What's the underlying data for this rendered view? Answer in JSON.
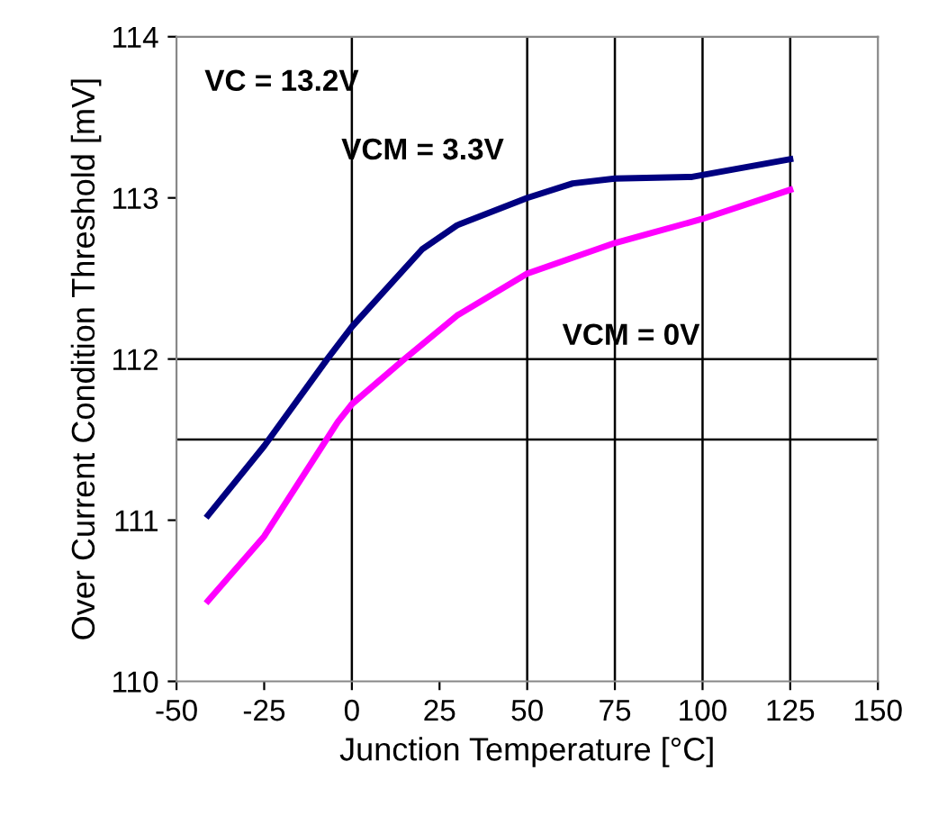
{
  "chart_data": {
    "type": "line",
    "xlabel": "Junction Temperature [°C]",
    "ylabel": "Over Current Condition Threshold [mV]",
    "xlim": [
      -50,
      150
    ],
    "xticks": [
      -50,
      -25,
      0,
      25,
      50,
      75,
      100,
      125,
      150
    ],
    "ylim": [
      110,
      114
    ],
    "yticks": [
      110,
      111,
      112,
      113,
      114
    ],
    "grid": false,
    "series": [
      {
        "name": "VCM = 3.3V",
        "color": "#000080",
        "x": [
          -41,
          -25,
          -7,
          0,
          20,
          30,
          50,
          63,
          75,
          97,
          125
        ],
        "values": [
          111.03,
          111.46,
          112.0,
          112.2,
          112.68,
          112.83,
          113.0,
          113.09,
          113.12,
          113.13,
          113.24
        ]
      },
      {
        "name": "VCM = 0V",
        "color": "#ff00ff",
        "x": [
          -41,
          -25,
          -4,
          0,
          15,
          30,
          50,
          75,
          100,
          125
        ],
        "values": [
          110.5,
          110.9,
          111.61,
          111.72,
          112.0,
          112.27,
          112.53,
          112.72,
          112.87,
          113.05
        ]
      }
    ],
    "annotations": [
      "VC = 13.2V"
    ],
    "ref_lines": [
      {
        "axis": "x",
        "value": 0,
        "color": "#000000"
      },
      {
        "axis": "x",
        "value": 50,
        "color": "#000000"
      },
      {
        "axis": "x",
        "value": 75,
        "color": "#000000"
      },
      {
        "axis": "x",
        "value": 100,
        "color": "#000000"
      },
      {
        "axis": "x",
        "value": 125,
        "color": "#000000"
      },
      {
        "axis": "y",
        "value": 112,
        "color": "#000000"
      },
      {
        "axis": "y",
        "value": 111.5,
        "color": "#000000"
      }
    ]
  }
}
